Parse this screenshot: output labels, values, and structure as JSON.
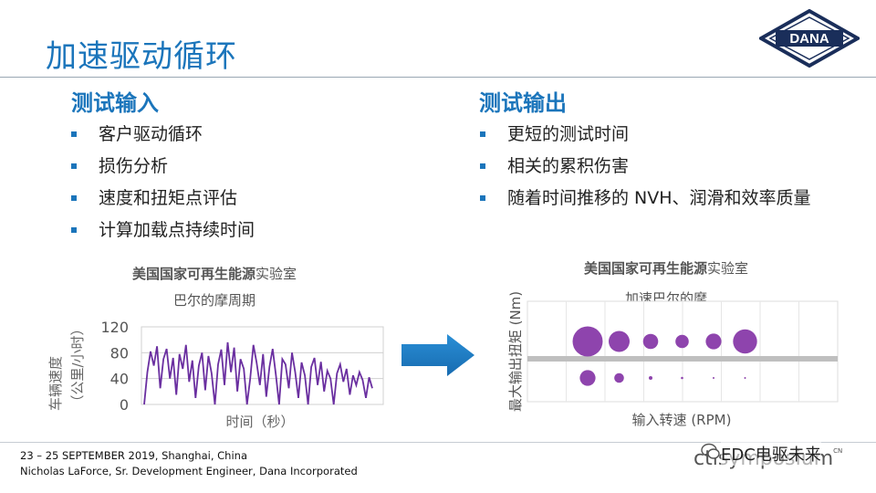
{
  "slide": {
    "title": "加速驱动循环"
  },
  "left": {
    "heading": "测试输入",
    "bullets": [
      "客户驱动循环",
      "损伤分析",
      "速度和扭矩点评估",
      "计算加载点持续时间"
    ]
  },
  "right": {
    "heading": "测试输出",
    "bullets": [
      "更短的测试时间",
      "相关的累积伤害",
      "随着时间推移的 NVH、润滑和效率质量"
    ]
  },
  "chart_data": [
    {
      "type": "line",
      "title_bold": "美国国家可再生能源",
      "title_light": "实验室",
      "subtitle": "巴尔的摩周期",
      "xlabel": "时间（秒）",
      "ylabel_line1": "车辆速度",
      "ylabel_line2": "（公里/小时）",
      "yticks": [
        "0",
        "40",
        "80",
        "120"
      ],
      "ylim": [
        0,
        120
      ],
      "grid": true,
      "series": [
        {
          "color": "#6a2fa0",
          "values": [
            0,
            50,
            82,
            60,
            90,
            25,
            70,
            86,
            40,
            72,
            15,
            78,
            55,
            92,
            35,
            68,
            10,
            60,
            80,
            22,
            75,
            48,
            0,
            62,
            85,
            30,
            96,
            50,
            88,
            20,
            70,
            55,
            0,
            40,
            92,
            65,
            30,
            78,
            12,
            58,
            86,
            45,
            0,
            70,
            62,
            25,
            80,
            50,
            10,
            65,
            45,
            0,
            58,
            72,
            30,
            66,
            20,
            52,
            40,
            0,
            48,
            62,
            35,
            55,
            15,
            45,
            30,
            50,
            38,
            10,
            42,
            25
          ]
        }
      ]
    },
    {
      "type": "scatter",
      "title_bold": "美国国家可再生能源",
      "title_light": "实验室",
      "subtitle": "加速巴尔的摩",
      "xlabel": "输入转速 (RPM)",
      "ylabel": "最大输出扭矩 (Nm)",
      "grid": true,
      "point_color": "#8e44ad",
      "band_color": "#bfbfbf",
      "points": [
        {
          "x": 1,
          "y": 1,
          "size": 5
        },
        {
          "x": 2,
          "y": 1,
          "size": 3.5
        },
        {
          "x": 3,
          "y": 1,
          "size": 2.5
        },
        {
          "x": 4,
          "y": 1,
          "size": 2.2
        },
        {
          "x": 5,
          "y": 1,
          "size": 2.6
        },
        {
          "x": 6,
          "y": 1,
          "size": 4
        },
        {
          "x": 1,
          "y": -1,
          "size": 2.6
        },
        {
          "x": 2,
          "y": -1,
          "size": 1.6
        },
        {
          "x": 3,
          "y": -1,
          "size": 0.6
        },
        {
          "x": 4,
          "y": -1,
          "size": 0.4
        },
        {
          "x": 5,
          "y": -1,
          "size": 0.3
        },
        {
          "x": 6,
          "y": -1,
          "size": 0.3
        }
      ]
    }
  ],
  "footer": {
    "line1": "23 – 25 SEPTEMBER 2019, Shanghai, China",
    "line2": "Nicholas LaForce, Sr. Development Engineer, Dana Incorporated",
    "brand": "ctisymposium",
    "brand_sup": "CN",
    "watermark": "EDC电驱未来"
  },
  "logo_text": "DANA",
  "colors": {
    "accent": "#1b75bb",
    "line": "#6a2fa0",
    "bubble": "#8e44ad"
  }
}
